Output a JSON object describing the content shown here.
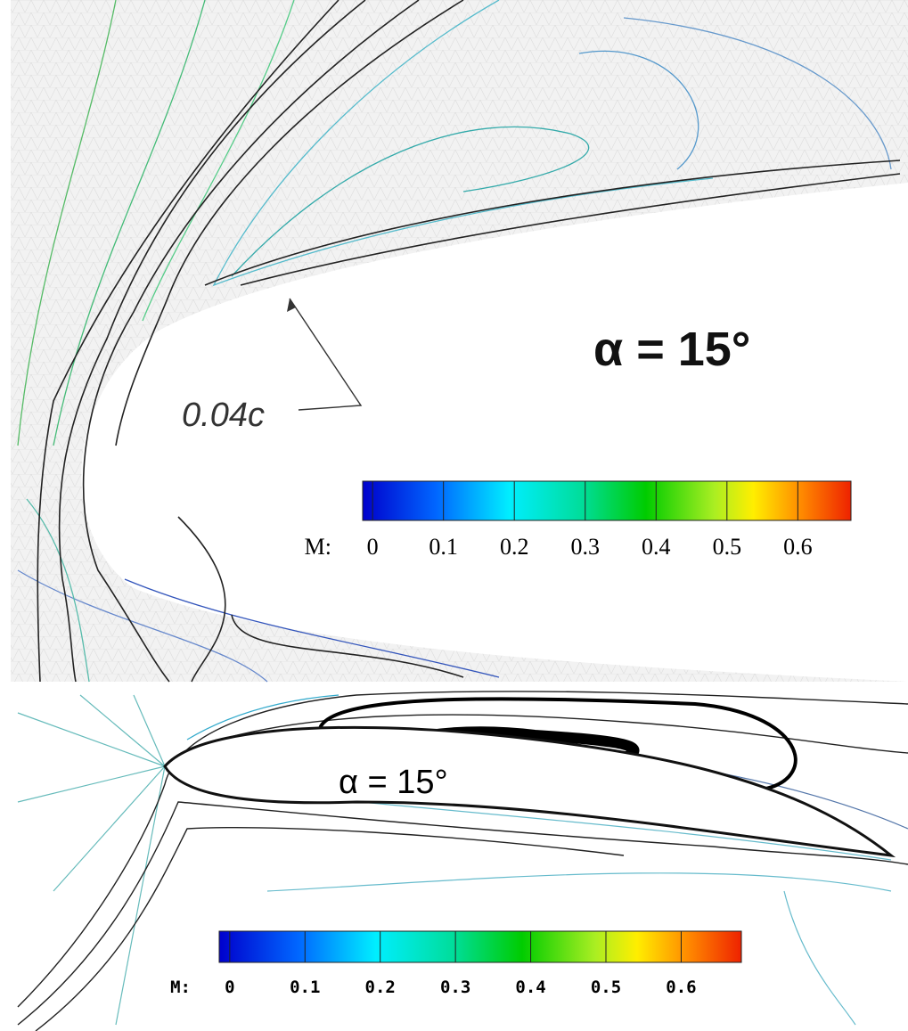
{
  "top_panel": {
    "angle_label": "α = 15°",
    "thickness_label": "0.04c",
    "colorbar": {
      "label": "M:",
      "lim": [
        -0.014,
        0.675
      ],
      "ticks": [
        0,
        0.1,
        0.2,
        0.3,
        0.4,
        0.5,
        0.6
      ]
    }
  },
  "bottom_panel": {
    "angle_label": "α = 15°",
    "colorbar": {
      "label": "M:",
      "lim": [
        -0.014,
        0.68
      ],
      "ticks": [
        0,
        0.1,
        0.2,
        0.3,
        0.4,
        0.5,
        0.6
      ]
    }
  }
}
